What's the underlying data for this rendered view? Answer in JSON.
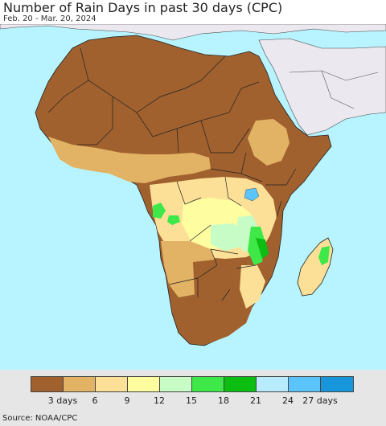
{
  "header": {
    "title": "Number of Rain Days in past 30 days (CPC)",
    "date_range": "Feb. 20 - Mar. 20, 2024"
  },
  "map": {
    "region": "Africa",
    "ocean_color": "#b8f4ff",
    "outside_land_color": "#ece8f0"
  },
  "legend": {
    "colors": [
      "#a0612e",
      "#e2b365",
      "#fde098",
      "#fefea0",
      "#c8fcc6",
      "#3de848",
      "#0cbd12",
      "#b8ecfc",
      "#5cc4fc",
      "#1896dc"
    ],
    "tick_labels": [
      "3 days",
      "6",
      "9",
      "12",
      "15",
      "18",
      "21",
      "24",
      "27 days"
    ]
  },
  "footer": {
    "source": "Source: NOAA/CPC"
  }
}
